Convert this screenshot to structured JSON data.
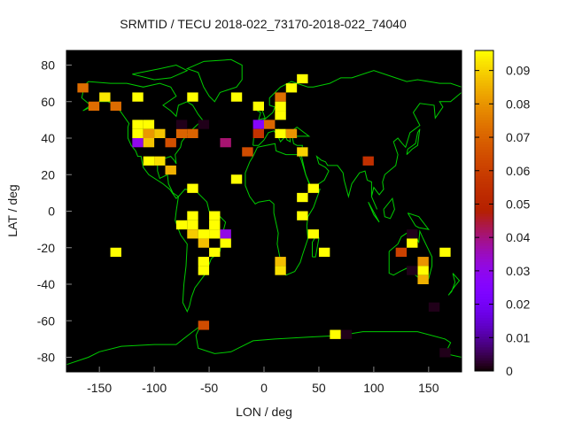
{
  "chart_data": {
    "type": "heatmap",
    "title": "SRMTID / TECU 2018-022_73170-2018-022_74040",
    "xlabel": "LON / deg",
    "ylabel": "LAT / deg",
    "xlim": [
      -180,
      180
    ],
    "ylim": [
      -88,
      88
    ],
    "cell_size_deg": [
      10,
      5
    ],
    "xticks": [
      "-150",
      "-100",
      "-50",
      "0",
      "50",
      "100",
      "150"
    ],
    "xtick_values": [
      -150,
      -100,
      -50,
      0,
      50,
      100,
      150
    ],
    "yticks": [
      "-80",
      "-60",
      "-40",
      "-20",
      "0",
      "20",
      "40",
      "60",
      "80"
    ],
    "ytick_values": [
      -80,
      -60,
      -40,
      -20,
      0,
      20,
      40,
      60,
      80
    ],
    "colorbar": {
      "range": [
        0,
        0.096
      ],
      "ticks": [
        "0",
        "0.01",
        "0.02",
        "0.03",
        "0.04",
        "0.05",
        "0.06",
        "0.07",
        "0.08",
        "0.09"
      ],
      "tick_values": [
        0,
        0.01,
        0.02,
        0.03,
        0.04,
        0.05,
        0.06,
        0.07,
        0.08,
        0.09
      ],
      "placement": "right"
    },
    "coastline_color": "#00cc00",
    "background_color": "#000000",
    "cells": [
      [
        -165,
        67.5,
        0.072
      ],
      [
        -145,
        62.5,
        0.093
      ],
      [
        -155,
        57.5,
        0.072
      ],
      [
        -135,
        57.5,
        0.072
      ],
      [
        -115,
        62.5,
        0.096
      ],
      [
        -65,
        62.5,
        0.096
      ],
      [
        -25,
        62.5,
        0.096
      ],
      [
        -5,
        57.5,
        0.096
      ],
      [
        -115,
        47.5,
        0.096
      ],
      [
        -105,
        47.5,
        0.096
      ],
      [
        -115,
        42.5,
        0.096
      ],
      [
        -105,
        42.5,
        0.081
      ],
      [
        -95,
        42.5,
        0.088
      ],
      [
        -75,
        42.5,
        0.07
      ],
      [
        -65,
        42.5,
        0.07
      ],
      [
        -75,
        47.5,
        0.0015
      ],
      [
        -55,
        47.5,
        0.0015
      ],
      [
        -115,
        37.5,
        0.03
      ],
      [
        -105,
        37.5,
        0.088
      ],
      [
        -85,
        37.5,
        0.065
      ],
      [
        -35,
        37.5,
        0.041
      ],
      [
        -15,
        32.5,
        0.064
      ],
      [
        -105,
        27.5,
        0.096
      ],
      [
        -95,
        27.5,
        0.092
      ],
      [
        -85,
        22.5,
        0.085
      ],
      [
        -25,
        17.5,
        0.096
      ],
      [
        -65,
        12.5,
        0.096
      ],
      [
        -5,
        47.5,
        0.026
      ],
      [
        -5,
        42.5,
        0.056
      ],
      [
        35,
        72.5,
        0.096
      ],
      [
        25,
        67.5,
        0.096
      ],
      [
        15,
        62.5,
        0.073
      ],
      [
        15,
        57.5,
        0.096
      ],
      [
        15,
        52.5,
        0.096
      ],
      [
        5,
        47.5,
        0.071
      ],
      [
        15,
        42.5,
        0.096
      ],
      [
        25,
        42.5,
        0.08
      ],
      [
        35,
        32.5,
        0.09
      ],
      [
        95,
        27.5,
        0.055
      ],
      [
        45,
        12.5,
        0.096
      ],
      [
        35,
        7.5,
        0.096
      ],
      [
        -65,
        -2.5,
        0.096
      ],
      [
        -65,
        -7.5,
        0.096
      ],
      [
        -75,
        -7.5,
        0.096
      ],
      [
        -45,
        -2.5,
        0.096
      ],
      [
        -45,
        -7.5,
        0.096
      ],
      [
        -45,
        -12.5,
        0.096
      ],
      [
        -65,
        -12.5,
        0.089
      ],
      [
        -55,
        -12.5,
        0.096
      ],
      [
        -35,
        -12.5,
        0.031
      ],
      [
        -55,
        -17.5,
        0.087
      ],
      [
        -35,
        -17.5,
        0.096
      ],
      [
        -135,
        -22.5,
        0.096
      ],
      [
        -45,
        -22.5,
        0.096
      ],
      [
        -55,
        -27.5,
        0.096
      ],
      [
        -55,
        -32.5,
        0.096
      ],
      [
        15,
        -27.5,
        0.087
      ],
      [
        15,
        -32.5,
        0.092
      ],
      [
        35,
        -2.5,
        0.096
      ],
      [
        45,
        -12.5,
        0.096
      ],
      [
        55,
        -22.5,
        0.096
      ],
      [
        135,
        -12.5,
        0.0015
      ],
      [
        135,
        -17.5,
        0.096
      ],
      [
        125,
        -22.5,
        0.061
      ],
      [
        145,
        -27.5,
        0.08
      ],
      [
        145,
        -32.5,
        0.096
      ],
      [
        145,
        -37.5,
        0.085
      ],
      [
        135,
        -32.5,
        0.0015
      ],
      [
        165,
        -22.5,
        0.096
      ],
      [
        155,
        -52.5,
        0.0015
      ],
      [
        -55,
        -62.5,
        0.064
      ],
      [
        65,
        -67.5,
        0.096
      ],
      [
        75,
        -67.5,
        0.0015
      ],
      [
        165,
        -77.5,
        0.0015
      ]
    ]
  }
}
